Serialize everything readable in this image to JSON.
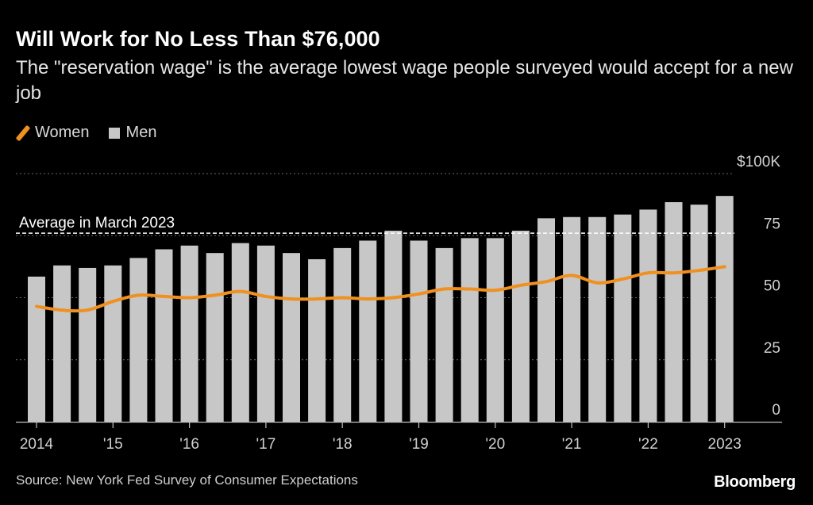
{
  "title": "Will Work for No Less Than $76,000",
  "subtitle": "The \"reservation wage\" is the average lowest wage people surveyed would accept for a new job",
  "legend": {
    "women_label": "Women",
    "men_label": "Men"
  },
  "source": "Source: New York Fed Survey of Consumer Expectations",
  "brand": "Bloomberg",
  "colors": {
    "background": "#000000",
    "women": "#f0901e",
    "men": "#c7c7c7",
    "grid": "#6a6a6a",
    "reference": "#ffffff"
  },
  "chart_data": {
    "type": "bar",
    "title": "Will Work for No Less Than $76,000",
    "xlabel": "",
    "ylabel": "",
    "ylim": [
      0,
      100
    ],
    "y_ticks": [
      {
        "value": 0,
        "label": "0"
      },
      {
        "value": 25,
        "label": "25"
      },
      {
        "value": 50,
        "label": "50"
      },
      {
        "value": 75,
        "label": "75"
      },
      {
        "value": 100,
        "label": "$100K"
      }
    ],
    "x_ticks": [
      {
        "index": 0,
        "label": "2014"
      },
      {
        "index": 3,
        "label": "'15"
      },
      {
        "index": 6,
        "label": "'16"
      },
      {
        "index": 9,
        "label": "'17"
      },
      {
        "index": 12,
        "label": "'18"
      },
      {
        "index": 15,
        "label": "'19"
      },
      {
        "index": 18,
        "label": "'20"
      },
      {
        "index": 21,
        "label": "'21"
      },
      {
        "index": 24,
        "label": "'22"
      },
      {
        "index": 27,
        "label": "2023"
      }
    ],
    "grid": true,
    "reference_line": {
      "label": "Average in March 2023",
      "value": 76
    },
    "series": [
      {
        "name": "Men",
        "kind": "bar",
        "values": [
          58.5,
          63,
          62,
          63,
          66,
          69.5,
          71,
          68,
          72,
          71,
          68,
          65.5,
          70,
          73,
          77,
          73,
          70,
          74,
          74,
          77,
          82,
          82.5,
          82.5,
          83.5,
          85.5,
          88.5,
          87.5,
          91
        ]
      },
      {
        "name": "Women",
        "kind": "line",
        "values": [
          46.5,
          45,
          45,
          48.5,
          51,
          50.5,
          50,
          51,
          52.5,
          50.5,
          49.5,
          49.5,
          50,
          49.5,
          50,
          51.5,
          53.5,
          53.5,
          53,
          55,
          56.5,
          59,
          56,
          57.5,
          60,
          60,
          61,
          62.5
        ]
      }
    ]
  }
}
